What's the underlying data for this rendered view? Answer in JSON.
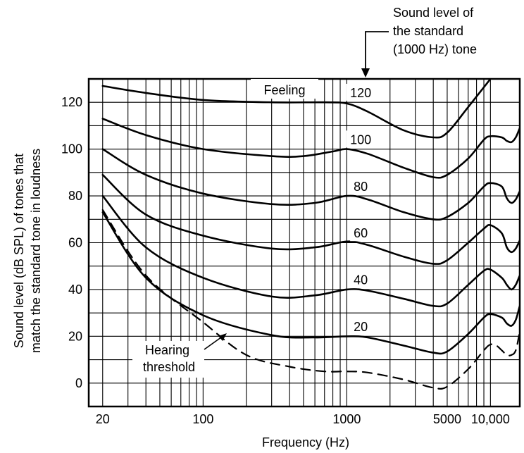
{
  "chart_data": {
    "type": "line",
    "title": "",
    "xlabel": "Frequency (Hz)",
    "ylabel": [
      "Sound level (dB SPL) of tones that",
      "match the standard tone in loudness"
    ],
    "x_scale": "log",
    "xlim": [
      16,
      16000
    ],
    "ylim": [
      -10,
      130
    ],
    "grid": true,
    "x_ticks": [
      {
        "value": 20,
        "label": "20"
      },
      {
        "value": 100,
        "label": "100"
      },
      {
        "value": 1000,
        "label": "1000"
      },
      {
        "value": 5000,
        "label": "5000"
      },
      {
        "value": 10000,
        "label": "10,000"
      }
    ],
    "y_ticks": [
      {
        "value": 0,
        "label": "0"
      },
      {
        "value": 20,
        "label": "20"
      },
      {
        "value": 40,
        "label": "40"
      },
      {
        "value": 60,
        "label": "60"
      },
      {
        "value": 80,
        "label": "80"
      },
      {
        "value": 100,
        "label": "100"
      },
      {
        "value": 120,
        "label": "120"
      }
    ],
    "series": [
      {
        "name": "120",
        "style": "solid",
        "points": [
          [
            20,
            127
          ],
          [
            40,
            124
          ],
          [
            100,
            121
          ],
          [
            300,
            120
          ],
          [
            700,
            120
          ],
          [
            1000,
            119.5
          ],
          [
            1400,
            116
          ],
          [
            2500,
            108
          ],
          [
            4000,
            105
          ],
          [
            5000,
            107
          ],
          [
            7000,
            118
          ],
          [
            10000,
            130
          ]
        ]
      },
      {
        "name": "100",
        "style": "solid",
        "points": [
          [
            20,
            113
          ],
          [
            40,
            106
          ],
          [
            100,
            100
          ],
          [
            300,
            97
          ],
          [
            500,
            97
          ],
          [
            800,
            99
          ],
          [
            1000,
            100
          ],
          [
            1400,
            98
          ],
          [
            2500,
            92
          ],
          [
            4000,
            88
          ],
          [
            5000,
            89
          ],
          [
            7000,
            96
          ],
          [
            9000,
            104
          ],
          [
            10000,
            105.5
          ],
          [
            12000,
            105
          ],
          [
            13000,
            103.5
          ],
          [
            14000,
            103
          ],
          [
            15000,
            105
          ],
          [
            16000,
            109
          ]
        ]
      },
      {
        "name": "80",
        "style": "solid",
        "points": [
          [
            20,
            100
          ],
          [
            40,
            89
          ],
          [
            100,
            81
          ],
          [
            300,
            76.5
          ],
          [
            600,
            77
          ],
          [
            1000,
            80
          ],
          [
            1400,
            78.5
          ],
          [
            2500,
            73
          ],
          [
            4000,
            70
          ],
          [
            5000,
            71
          ],
          [
            7000,
            77
          ],
          [
            9000,
            84
          ],
          [
            10000,
            85.5
          ],
          [
            12000,
            84
          ],
          [
            13000,
            79
          ],
          [
            14000,
            77
          ],
          [
            15000,
            78.5
          ],
          [
            16000,
            82
          ]
        ]
      },
      {
        "name": "60",
        "style": "solid",
        "points": [
          [
            20,
            89
          ],
          [
            40,
            72
          ],
          [
            100,
            63
          ],
          [
            300,
            57.5
          ],
          [
            600,
            58
          ],
          [
            1000,
            60.5
          ],
          [
            1400,
            59
          ],
          [
            2500,
            54
          ],
          [
            4000,
            51
          ],
          [
            5000,
            52.5
          ],
          [
            7000,
            60
          ],
          [
            9000,
            66
          ],
          [
            10000,
            67.5
          ],
          [
            12000,
            64
          ],
          [
            13000,
            58
          ],
          [
            14000,
            56
          ],
          [
            15000,
            57.5
          ],
          [
            16000,
            61
          ]
        ]
      },
      {
        "name": "40",
        "style": "solid",
        "points": [
          [
            20,
            80
          ],
          [
            40,
            58
          ],
          [
            100,
            45
          ],
          [
            300,
            37
          ],
          [
            600,
            37.5
          ],
          [
            1000,
            40
          ],
          [
            1400,
            39.5
          ],
          [
            2500,
            36
          ],
          [
            4000,
            33
          ],
          [
            5000,
            34
          ],
          [
            7000,
            42
          ],
          [
            9000,
            48
          ],
          [
            10000,
            48.5
          ],
          [
            12000,
            45
          ],
          [
            13000,
            42
          ],
          [
            14000,
            40
          ],
          [
            15000,
            42
          ],
          [
            16000,
            46
          ]
        ]
      },
      {
        "name": "20",
        "style": "solid",
        "points": [
          [
            20,
            73
          ],
          [
            40,
            45
          ],
          [
            100,
            29
          ],
          [
            300,
            20.5
          ],
          [
            600,
            19.5
          ],
          [
            1000,
            20
          ],
          [
            1400,
            19.5
          ],
          [
            2500,
            16
          ],
          [
            4000,
            13
          ],
          [
            5000,
            13.5
          ],
          [
            7000,
            21
          ],
          [
            9000,
            28
          ],
          [
            10000,
            29.5
          ],
          [
            12000,
            28
          ],
          [
            13000,
            25.5
          ],
          [
            14000,
            24.5
          ],
          [
            15000,
            27
          ],
          [
            16000,
            33
          ]
        ]
      },
      {
        "name": "Hearing threshold",
        "style": "dashed",
        "points": [
          [
            20,
            74
          ],
          [
            40,
            46
          ],
          [
            100,
            26
          ],
          [
            200,
            12
          ],
          [
            400,
            7
          ],
          [
            700,
            5
          ],
          [
            1000,
            5
          ],
          [
            1400,
            4.5
          ],
          [
            2500,
            1.5
          ],
          [
            4000,
            -2
          ],
          [
            5000,
            -1.5
          ],
          [
            7000,
            6
          ],
          [
            9000,
            14
          ],
          [
            10000,
            16.5
          ],
          [
            11000,
            16
          ],
          [
            12000,
            14
          ],
          [
            13000,
            12
          ],
          [
            14000,
            12
          ],
          [
            15000,
            14
          ],
          [
            16000,
            22
          ]
        ]
      }
    ],
    "curve_labels": [
      {
        "text": "120",
        "x": 1250,
        "y": 124
      },
      {
        "text": "100",
        "x": 1250,
        "y": 104
      },
      {
        "text": "80",
        "x": 1250,
        "y": 84
      },
      {
        "text": "60",
        "x": 1250,
        "y": 64
      },
      {
        "text": "40",
        "x": 1250,
        "y": 44
      },
      {
        "text": "20",
        "x": 1250,
        "y": 24
      }
    ],
    "annotations": {
      "feeling": "Feeling",
      "hearing_threshold": [
        "Hearing",
        "threshold"
      ],
      "standard_tone": [
        "Sound level of",
        "the standard",
        "(1000 Hz) tone"
      ]
    }
  }
}
